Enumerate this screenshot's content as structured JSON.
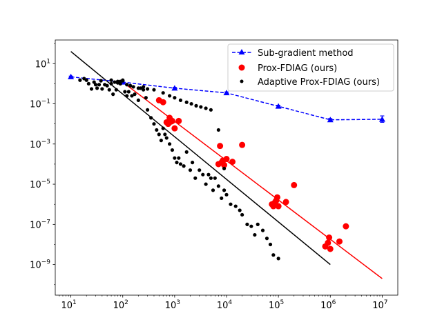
{
  "chart_data": {
    "type": "scatter",
    "title": "",
    "xlabel": "",
    "ylabel": "",
    "xscale": "log",
    "yscale": "log",
    "xlim": [
      5,
      20000000
    ],
    "ylim": [
      3e-11,
      150
    ],
    "x_ticks": [
      {
        "value": 10,
        "base": "10",
        "exp": "1"
      },
      {
        "value": 100,
        "base": "10",
        "exp": "2"
      },
      {
        "value": 1000,
        "base": "10",
        "exp": "3"
      },
      {
        "value": 10000,
        "base": "10",
        "exp": "4"
      },
      {
        "value": 100000,
        "base": "10",
        "exp": "5"
      },
      {
        "value": 1000000,
        "base": "10",
        "exp": "6"
      },
      {
        "value": 10000000,
        "base": "10",
        "exp": "7"
      }
    ],
    "y_ticks": [
      {
        "value": 1e-09,
        "base": "10",
        "exp": "−9"
      },
      {
        "value": 1e-07,
        "base": "10",
        "exp": "−7"
      },
      {
        "value": 1e-05,
        "base": "10",
        "exp": "−5"
      },
      {
        "value": 0.001,
        "base": "10",
        "exp": "−3"
      },
      {
        "value": 0.1,
        "base": "10",
        "exp": "−1"
      },
      {
        "value": 10,
        "base": "10",
        "exp": "1"
      }
    ],
    "legend_position": "top-right",
    "series": [
      {
        "name": "Sub-gradient method",
        "style": "dashed-line-triangle",
        "color": "#0000ff",
        "x": [
          10,
          100,
          1000,
          10000,
          100000,
          1000000,
          10000000
        ],
        "y": [
          2.2,
          1.2,
          0.6,
          0.35,
          0.075,
          0.016,
          0.017
        ],
        "yerr_low": [
          2.0,
          1.05,
          0.55,
          0.31,
          0.065,
          0.0135,
          0.012
        ],
        "yerr_high": [
          2.4,
          1.35,
          0.66,
          0.39,
          0.085,
          0.0185,
          0.025
        ]
      },
      {
        "name": "Prox-FDIAG (ours)",
        "style": "circle",
        "color": "#ff0000",
        "x": [
          500,
          600,
          700,
          750,
          800,
          850,
          900,
          1000,
          1200,
          7000,
          7500,
          8000,
          8500,
          9000,
          10000,
          13000,
          20000,
          75000,
          80000,
          85000,
          90000,
          95000,
          100000,
          140000,
          200000,
          800000,
          900000,
          950000,
          1000000,
          1500000,
          2000000
        ],
        "y": [
          0.15,
          0.12,
          0.012,
          0.01,
          0.02,
          0.013,
          0.014,
          0.006,
          0.014,
          0.0001,
          0.0008,
          0.00012,
          0.00015,
          9e-05,
          0.00018,
          0.00013,
          0.0009,
          1e-06,
          8e-07,
          1.2e-06,
          1.5e-06,
          2.2e-06,
          8e-07,
          1.3e-06,
          9e-06,
          8e-09,
          1.2e-08,
          2.2e-08,
          6e-09,
          1.4e-08,
          8e-08
        ]
      },
      {
        "name": "Adaptive Prox-FDIAG (ours)",
        "style": "dot",
        "color": "#000000",
        "x": [
          15,
          18,
          20,
          22,
          25,
          28,
          30,
          32,
          35,
          38,
          40,
          45,
          50,
          55,
          60,
          65,
          70,
          75,
          80,
          90,
          100,
          110,
          120,
          130,
          150,
          170,
          200,
          220,
          250,
          280,
          300,
          350,
          400,
          450,
          500,
          550,
          600,
          650,
          700,
          800,
          900,
          1000,
          1100,
          1200,
          1300,
          1500,
          1700,
          2000,
          2200,
          2500,
          3000,
          3500,
          4000,
          4500,
          5000,
          5500,
          6000,
          7000,
          8000,
          9000,
          10000,
          12000,
          15000,
          18000,
          20000,
          25000,
          30000,
          35000,
          40000,
          50000,
          60000,
          70000,
          80000,
          100000,
          60,
          80,
          90,
          100,
          120,
          140,
          160,
          200,
          250,
          300,
          400,
          600,
          800,
          1000,
          1300,
          1700,
          2100,
          2600,
          3200,
          4000,
          5000,
          7000,
          9000
        ],
        "y": [
          1.5,
          1.8,
          1.5,
          1.0,
          0.55,
          1.2,
          0.9,
          0.6,
          0.9,
          1.4,
          0.55,
          0.9,
          0.8,
          0.5,
          1.0,
          0.3,
          1.2,
          0.5,
          1.3,
          1.0,
          1.5,
          0.4,
          0.25,
          0.4,
          0.25,
          0.3,
          0.15,
          0.6,
          0.5,
          0.2,
          0.05,
          0.02,
          0.01,
          0.005,
          0.003,
          0.0015,
          0.006,
          0.003,
          0.002,
          0.001,
          0.0005,
          0.0002,
          0.00012,
          0.0002,
          0.0001,
          8e-05,
          0.0004,
          5e-05,
          0.00012,
          2e-05,
          5e-05,
          3e-05,
          1e-05,
          3e-05,
          2e-05,
          5e-06,
          2e-05,
          8e-06,
          2e-06,
          5e-06,
          3e-06,
          1e-06,
          8e-07,
          5e-07,
          3e-07,
          1e-07,
          8e-08,
          3e-08,
          1e-07,
          5e-08,
          2e-08,
          1e-08,
          3e-09,
          2e-09,
          1.5,
          1.1,
          1.3,
          1.4,
          0.9,
          0.8,
          0.7,
          0.6,
          0.7,
          0.55,
          0.5,
          0.35,
          0.25,
          0.2,
          0.15,
          0.12,
          0.1,
          0.08,
          0.07,
          0.06,
          0.05,
          0.005,
          6e-05
        ]
      }
    ],
    "fit_lines": [
      {
        "color": "#000000",
        "x": [
          10,
          1000000
        ],
        "y": [
          40,
          1e-09
        ]
      },
      {
        "color": "#ff0000",
        "x": [
          100,
          10000000
        ],
        "y": [
          1.2,
          2e-10
        ]
      }
    ]
  }
}
